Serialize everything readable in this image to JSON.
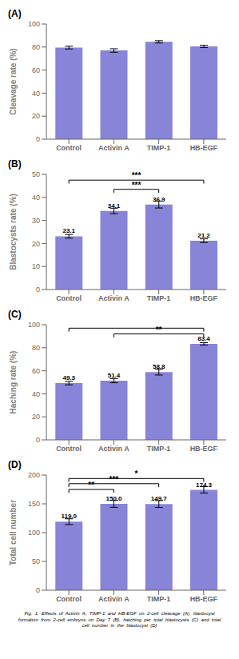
{
  "caption": "Fig.  1.  Effects  of  Activin  A,  TIMP-1  and  HB-EGF  on  2-cell  cleavage  (A),  blastocyst\nformation  from  2-cell  embryos  on  Day  7  (B),  hatching  per  total  blastocysts  (C)  and  total\ncell  number  in  the  blastocyst  (D)",
  "chart_data": [
    {
      "type": "bar",
      "title": "(A)",
      "categories": [
        "Control",
        "Activin A",
        "TIMP-1",
        "HB-EGF"
      ],
      "values": [
        79.5,
        77.0,
        84.5,
        80.5
      ],
      "errors": [
        1.2,
        1.5,
        1.0,
        1.0
      ],
      "ylabel": "Cleavage rate (%)",
      "ylim": [
        0,
        100
      ],
      "yticks": [
        0,
        20,
        40,
        60,
        80,
        100
      ],
      "grid": false,
      "data_labels": false
    },
    {
      "type": "bar",
      "title": "(B)",
      "categories": [
        "Control",
        "Activin A",
        "TIMP-1",
        "HB-EGF"
      ],
      "values": [
        23.1,
        34.1,
        36.9,
        21.2
      ],
      "errors": [
        0.8,
        1.2,
        1.5,
        0.8
      ],
      "ylabel": "Blastocysts rate (%)",
      "ylim": [
        0,
        50
      ],
      "yticks": [
        0,
        10,
        20,
        30,
        40,
        50
      ],
      "grid": false,
      "data_labels": true,
      "annotations": [
        {
          "text": "***",
          "x1": "Activin A",
          "x2": "TIMP-1",
          "y": 43.5
        },
        {
          "text": "***",
          "x1": "Control",
          "x2": "HB-EGF",
          "y": 47.5
        }
      ]
    },
    {
      "type": "bar",
      "title": "(C)",
      "categories": [
        "Control",
        "Activin A",
        "TIMP-1",
        "HB-EGF"
      ],
      "values": [
        49.3,
        51.4,
        58.8,
        83.4
      ],
      "errors": [
        1.5,
        1.8,
        2.5,
        1.0
      ],
      "ylabel": "Haching rate (%)",
      "ylim": [
        0,
        100
      ],
      "yticks": [
        0,
        20,
        40,
        60,
        80,
        100
      ],
      "grid": false,
      "data_labels": true,
      "annotations": [
        {
          "text": "**",
          "x1": "Activin A",
          "x2": "HB-EGF",
          "y": 92
        },
        {
          "x1": "Control",
          "x2": "HB-EGF",
          "y": 97
        }
      ]
    },
    {
      "type": "bar",
      "title": "(D)",
      "categories": [
        "Control",
        "Activin A",
        "TIMP-1",
        "HB-EGF"
      ],
      "values": [
        119.0,
        150.0,
        149.7,
        174.3
      ],
      "value_labels": [
        "119.0",
        "150.0",
        "149.7",
        "174.3"
      ],
      "errors": [
        5.0,
        6.0,
        6.0,
        5.5
      ],
      "ylabel": "Total cell  number",
      "ylim": [
        0,
        200
      ],
      "yticks": [
        0,
        50,
        100,
        150,
        200
      ],
      "grid": false,
      "data_labels": true,
      "annotations": [
        {
          "text": "**",
          "x1": "Control",
          "x2": "Activin A",
          "y": 175
        },
        {
          "text": "***",
          "x1": "Control",
          "x2": "TIMP-1",
          "y": 185
        },
        {
          "text": "*",
          "x1": "Control",
          "x2": "HB-EGF",
          "y": 194
        }
      ]
    }
  ]
}
